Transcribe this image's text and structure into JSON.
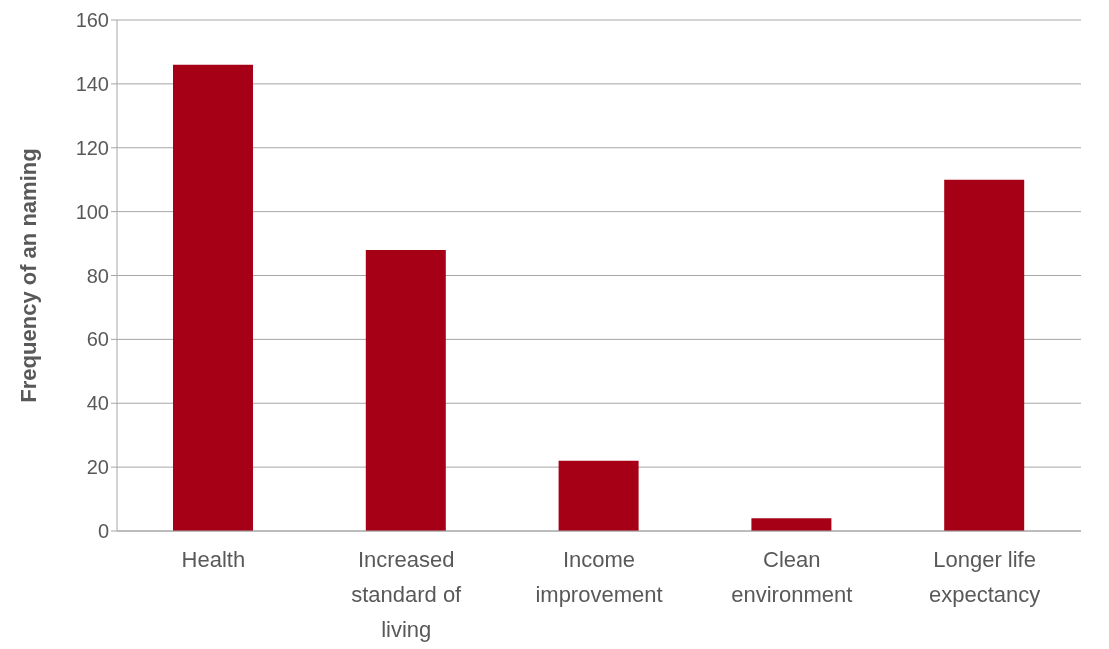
{
  "chart_data": {
    "type": "bar",
    "ylabel": "Frequency of an naming",
    "categories": [
      "Health",
      "Increased standard of living",
      "Income improvement",
      "Clean environment",
      "Longer life expectancy"
    ],
    "values": [
      146,
      88,
      22,
      4,
      110
    ],
    "color": "#a50016",
    "ylim": [
      0,
      160
    ],
    "yticks": [
      0,
      20,
      40,
      60,
      80,
      100,
      120,
      140,
      160
    ],
    "grid": "y"
  }
}
